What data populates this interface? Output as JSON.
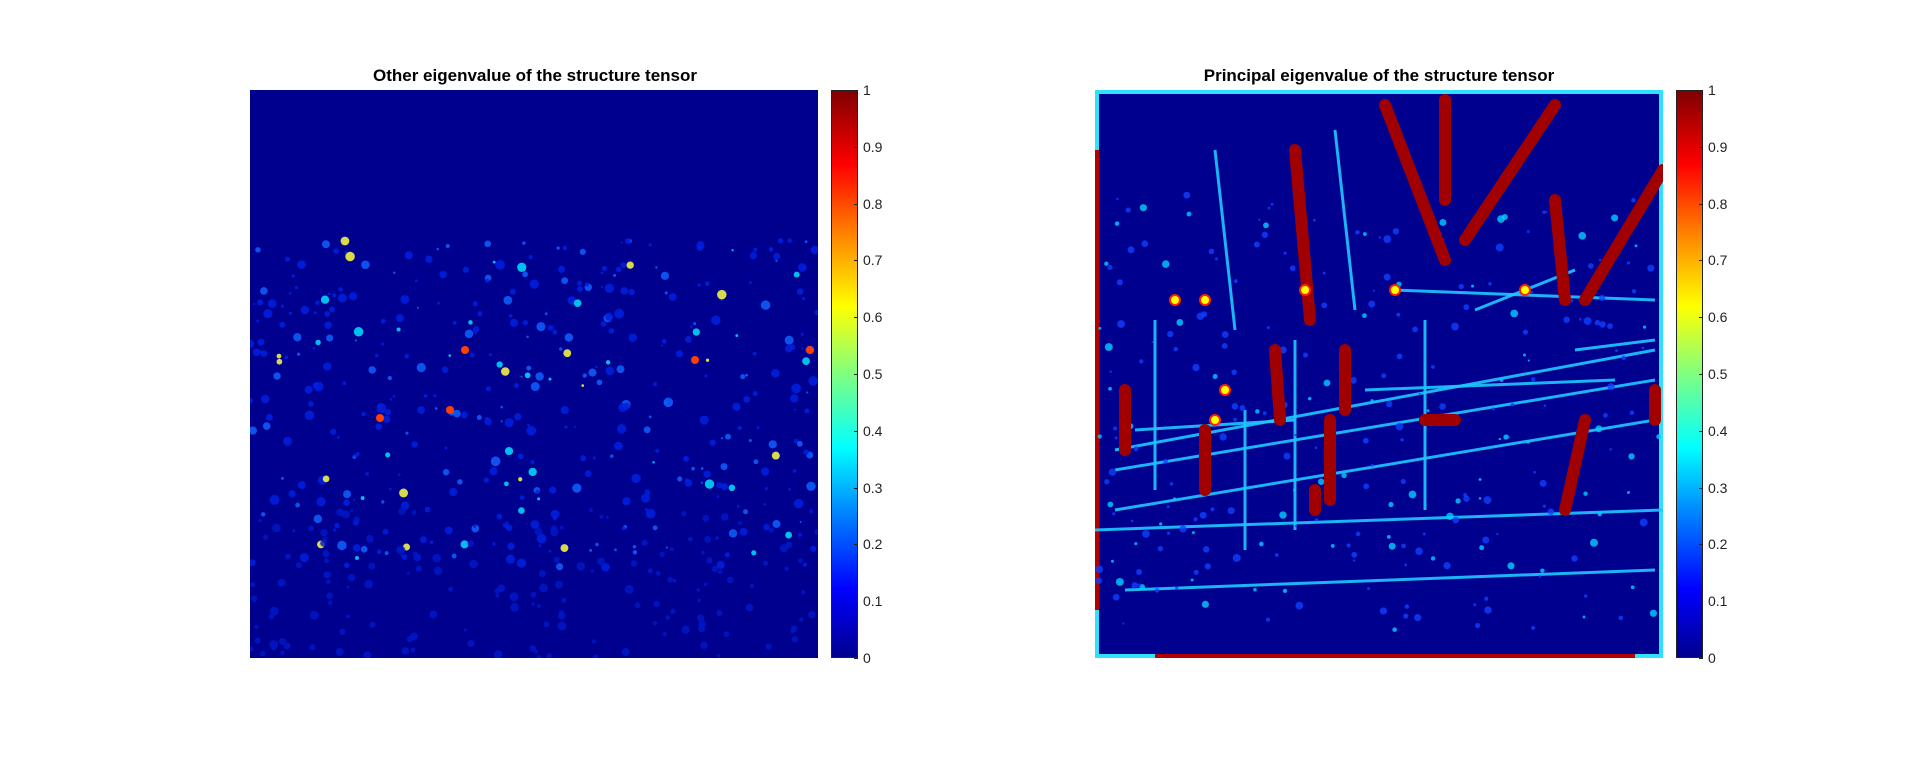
{
  "chart_data": [
    {
      "type": "heatmap",
      "title": "Other eigenvalue of the structure tensor",
      "colormap": "jet",
      "clim": [
        0,
        1
      ],
      "colorbar_ticks": [
        "0",
        "0.1",
        "0.2",
        "0.3",
        "0.4",
        "0.5",
        "0.6",
        "0.7",
        "0.8",
        "0.9",
        "1"
      ],
      "axes_visible": false
    },
    {
      "type": "heatmap",
      "title": "Principal eigenvalue of the structure tensor",
      "colormap": "jet",
      "clim": [
        0,
        1
      ],
      "colorbar_ticks": [
        "0",
        "0.1",
        "0.2",
        "0.3",
        "0.4",
        "0.5",
        "0.6",
        "0.7",
        "0.8",
        "0.9",
        "1"
      ],
      "axes_visible": false
    }
  ]
}
